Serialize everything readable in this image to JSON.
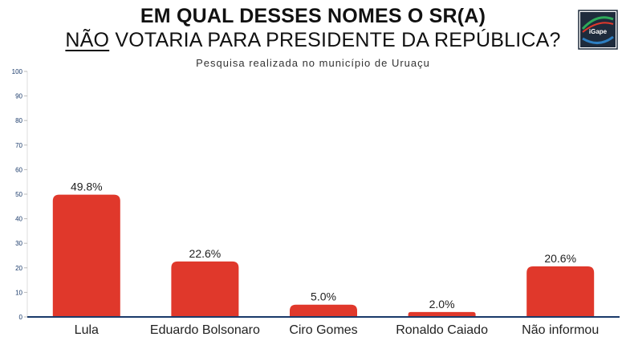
{
  "header": {
    "title_line1": "EM QUAL DESSES NOMES O SR(A)",
    "title_line2_emphasis": "NÃO",
    "title_line2_rest": " VOTARIA PARA PRESIDENTE DA REPÚBLICA?",
    "subtitle": "Pesquisa realizada no município de Uruaçu"
  },
  "logo": {
    "text": "iGape",
    "icon": "igape-logo"
  },
  "colors": {
    "bar": "#e0382b",
    "axis": "#1a3a6a",
    "tick_text": "#1a3a6a",
    "label_text": "#222222"
  },
  "chart_data": {
    "type": "bar",
    "categories": [
      "Lula",
      "Eduardo Bolsonaro",
      "Ciro Gomes",
      "Ronaldo Caiado",
      "Não informou"
    ],
    "values": [
      49.8,
      22.6,
      5.0,
      2.0,
      20.6
    ],
    "value_labels": [
      "49.8%",
      "22.6%",
      "5.0%",
      "2.0%",
      "20.6%"
    ],
    "ylim": [
      0,
      100
    ],
    "yticks": [
      0,
      10,
      20,
      30,
      40,
      50,
      60,
      70,
      80,
      90,
      100
    ],
    "grid": false,
    "legend": "none"
  }
}
